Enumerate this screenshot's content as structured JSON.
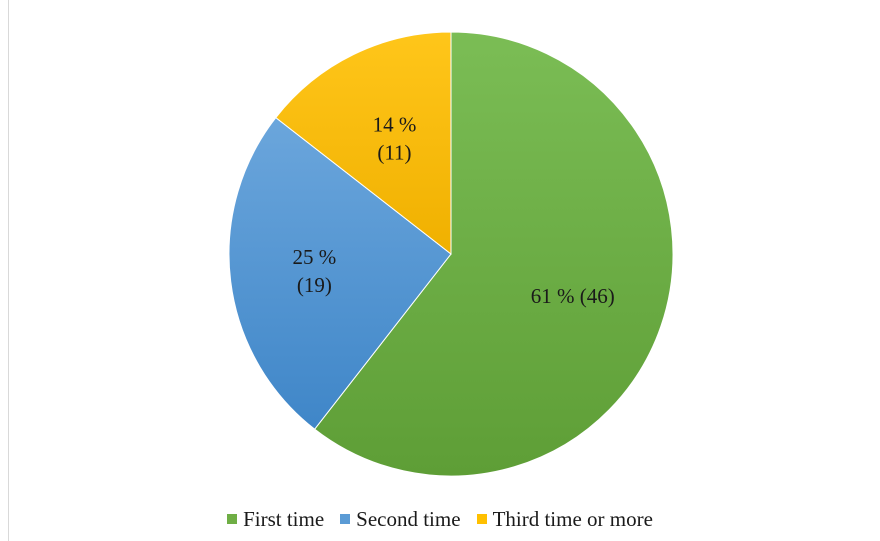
{
  "chart_data": {
    "type": "pie",
    "title": "",
    "categories": [
      "First time",
      "Second time",
      "Third time or more"
    ],
    "values": [
      46,
      19,
      11
    ],
    "percentages": [
      61,
      25,
      14
    ],
    "labels": [
      [
        "61 % (46)"
      ],
      [
        "25 %",
        "(19)"
      ],
      [
        "14 %",
        "(11)"
      ]
    ],
    "colors": [
      "#6fae45",
      "#5b9bd5",
      "#ffc000"
    ],
    "legend_position": "bottom",
    "start_angle_deg": 0,
    "direction": "clockwise"
  },
  "legend": {
    "items": [
      {
        "label": "First time",
        "color": "#6fae45"
      },
      {
        "label": "Second time",
        "color": "#5b9bd5"
      },
      {
        "label": "Third time or more",
        "color": "#ffc000"
      }
    ]
  }
}
